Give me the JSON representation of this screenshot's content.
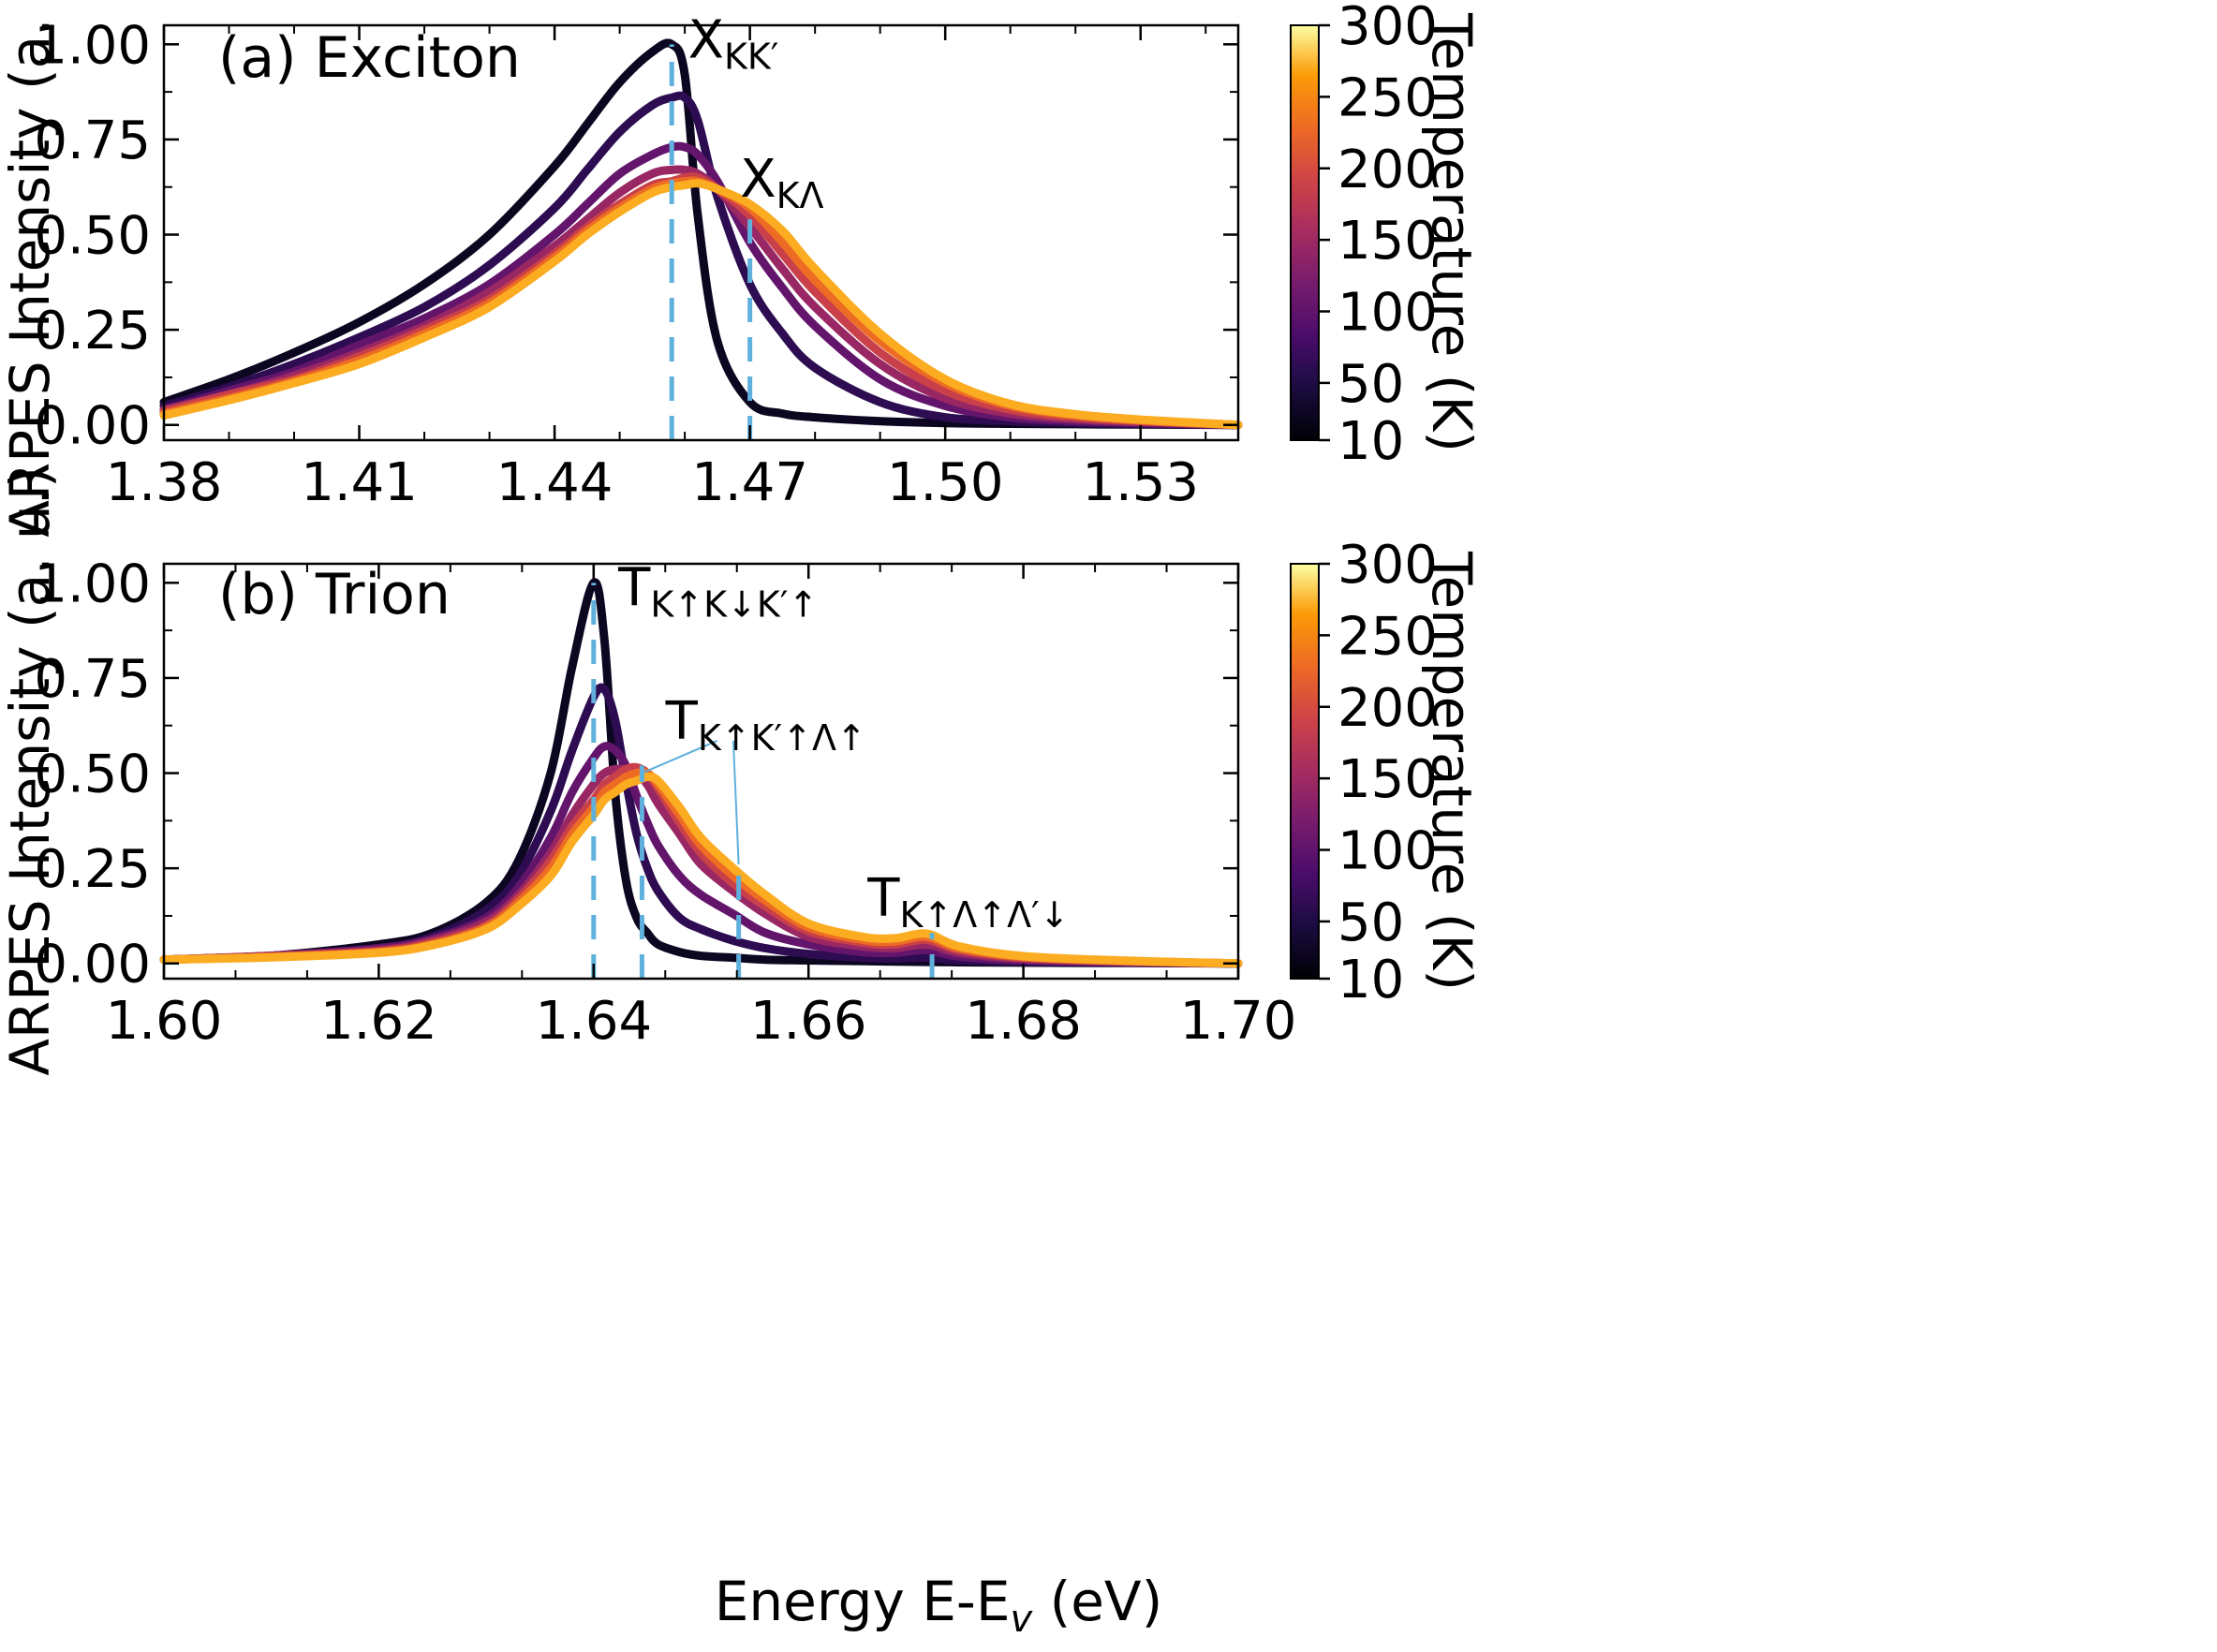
{
  "figure": {
    "xlabel_main": "Energy E-E",
    "xlabel_sub": "v",
    "xlabel_tail": " (eV)"
  },
  "chart_data": [
    {
      "type": "line",
      "panel_title": "(a) Exciton",
      "xlabel": "",
      "ylabel": "ARPES Intensity (a. u.)",
      "xlim": [
        1.38,
        1.545
      ],
      "ylim": [
        -0.04,
        1.05
      ],
      "xticks": [
        "1.38",
        "1.41",
        "1.44",
        "1.47",
        "1.50",
        "1.53"
      ],
      "xtick_values": [
        1.38,
        1.41,
        1.44,
        1.47,
        1.5,
        1.53
      ],
      "yticks": [
        "0.00",
        "0.25",
        "0.50",
        "0.75",
        "1.00"
      ],
      "ytick_values": [
        0,
        0.25,
        0.5,
        0.75,
        1.0
      ],
      "x": [
        1.38,
        1.39,
        1.4,
        1.41,
        1.42,
        1.43,
        1.44,
        1.445,
        1.45,
        1.455,
        1.458,
        1.46,
        1.462,
        1.465,
        1.47,
        1.475,
        1.48,
        1.49,
        1.5,
        1.51,
        1.52,
        1.53,
        1.545
      ],
      "series": [
        {
          "temperature": 10,
          "values": [
            0.06,
            0.12,
            0.19,
            0.27,
            0.37,
            0.5,
            0.68,
            0.79,
            0.9,
            0.98,
            1.0,
            0.92,
            0.55,
            0.22,
            0.06,
            0.03,
            0.02,
            0.01,
            0.005,
            0.003,
            0.002,
            0.001,
            0.0
          ]
        },
        {
          "temperature": 50,
          "values": [
            0.05,
            0.1,
            0.16,
            0.23,
            0.31,
            0.42,
            0.57,
            0.67,
            0.77,
            0.84,
            0.86,
            0.86,
            0.8,
            0.6,
            0.37,
            0.24,
            0.15,
            0.06,
            0.02,
            0.01,
            0.005,
            0.003,
            0.0
          ]
        },
        {
          "temperature": 100,
          "values": [
            0.04,
            0.09,
            0.14,
            0.21,
            0.28,
            0.37,
            0.5,
            0.58,
            0.66,
            0.71,
            0.73,
            0.73,
            0.71,
            0.64,
            0.48,
            0.36,
            0.26,
            0.12,
            0.05,
            0.02,
            0.01,
            0.005,
            0.0
          ]
        },
        {
          "temperature": 150,
          "values": [
            0.04,
            0.08,
            0.13,
            0.19,
            0.26,
            0.35,
            0.47,
            0.54,
            0.61,
            0.66,
            0.67,
            0.67,
            0.66,
            0.62,
            0.52,
            0.41,
            0.31,
            0.16,
            0.07,
            0.03,
            0.015,
            0.008,
            0.0
          ]
        },
        {
          "temperature": 200,
          "values": [
            0.035,
            0.08,
            0.12,
            0.18,
            0.25,
            0.33,
            0.45,
            0.52,
            0.58,
            0.63,
            0.64,
            0.65,
            0.65,
            0.62,
            0.55,
            0.45,
            0.35,
            0.19,
            0.09,
            0.04,
            0.02,
            0.01,
            0.0
          ]
        },
        {
          "temperature": 250,
          "values": [
            0.03,
            0.07,
            0.115,
            0.17,
            0.24,
            0.32,
            0.44,
            0.51,
            0.57,
            0.62,
            0.635,
            0.64,
            0.64,
            0.62,
            0.57,
            0.48,
            0.38,
            0.22,
            0.11,
            0.05,
            0.025,
            0.012,
            0.0
          ]
        },
        {
          "temperature": 300,
          "values": [
            0.025,
            0.065,
            0.11,
            0.16,
            0.23,
            0.31,
            0.43,
            0.5,
            0.56,
            0.61,
            0.625,
            0.63,
            0.635,
            0.62,
            0.58,
            0.51,
            0.41,
            0.24,
            0.12,
            0.055,
            0.028,
            0.014,
            0.0
          ]
        }
      ],
      "markers": [
        {
          "x": 1.458,
          "ytop": 1.0
        },
        {
          "x": 1.47,
          "ytop": 0.54
        }
      ],
      "annotations": [
        {
          "base": "X",
          "sub": "KK′",
          "x": 1.4605,
          "y": 0.965
        },
        {
          "base": "X",
          "sub": "KΛ",
          "x": 1.4685,
          "y": 0.6
        }
      ],
      "colorbar": {
        "label": "Temperature (K)",
        "ticks": [
          "10",
          "50",
          "100",
          "150",
          "200",
          "250",
          "300"
        ],
        "tick_values": [
          10,
          50,
          100,
          150,
          200,
          250,
          300
        ],
        "range": [
          10,
          300
        ],
        "colormap": "inferno"
      }
    },
    {
      "type": "line",
      "panel_title": "(b) Trion",
      "xlabel": "Energy E-Ev (eV)",
      "ylabel": "ARPES Intensity (a. u.)",
      "xlim": [
        1.6,
        1.7
      ],
      "ylim": [
        -0.04,
        1.05
      ],
      "xticks": [
        "1.60",
        "1.62",
        "1.64",
        "1.66",
        "1.68",
        "1.70"
      ],
      "xtick_values": [
        1.6,
        1.62,
        1.64,
        1.66,
        1.68,
        1.7
      ],
      "yticks": [
        "0.00",
        "0.25",
        "0.50",
        "0.75",
        "1.00"
      ],
      "ytick_values": [
        0,
        0.25,
        0.5,
        0.75,
        1.0
      ],
      "x": [
        1.6,
        1.61,
        1.62,
        1.625,
        1.63,
        1.633,
        1.636,
        1.638,
        1.64,
        1.641,
        1.642,
        1.643,
        1.644,
        1.645,
        1.646,
        1.648,
        1.65,
        1.653,
        1.656,
        1.66,
        1.665,
        1.668,
        1.671,
        1.674,
        1.68,
        1.69,
        1.7
      ],
      "series": [
        {
          "temperature": 10,
          "values": [
            0.01,
            0.02,
            0.05,
            0.08,
            0.16,
            0.27,
            0.5,
            0.78,
            1.0,
            0.85,
            0.45,
            0.22,
            0.12,
            0.08,
            0.05,
            0.03,
            0.02,
            0.015,
            0.01,
            0.008,
            0.006,
            0.005,
            0.004,
            0.003,
            0.002,
            0.001,
            0.0
          ]
        },
        {
          "temperature": 50,
          "values": [
            0.01,
            0.02,
            0.04,
            0.07,
            0.14,
            0.23,
            0.4,
            0.56,
            0.7,
            0.72,
            0.64,
            0.48,
            0.34,
            0.25,
            0.19,
            0.12,
            0.09,
            0.06,
            0.04,
            0.025,
            0.015,
            0.013,
            0.015,
            0.008,
            0.004,
            0.002,
            0.0
          ]
        },
        {
          "temperature": 100,
          "values": [
            0.01,
            0.02,
            0.04,
            0.065,
            0.12,
            0.2,
            0.33,
            0.45,
            0.54,
            0.57,
            0.56,
            0.52,
            0.44,
            0.37,
            0.31,
            0.23,
            0.18,
            0.13,
            0.08,
            0.05,
            0.03,
            0.028,
            0.035,
            0.018,
            0.008,
            0.003,
            0.0
          ]
        },
        {
          "temperature": 150,
          "values": [
            0.01,
            0.02,
            0.035,
            0.06,
            0.11,
            0.18,
            0.29,
            0.39,
            0.47,
            0.5,
            0.51,
            0.51,
            0.5,
            0.47,
            0.42,
            0.34,
            0.26,
            0.19,
            0.13,
            0.07,
            0.045,
            0.04,
            0.05,
            0.028,
            0.012,
            0.004,
            0.0
          ]
        },
        {
          "temperature": 200,
          "values": [
            0.01,
            0.018,
            0.032,
            0.055,
            0.1,
            0.17,
            0.27,
            0.36,
            0.43,
            0.47,
            0.49,
            0.51,
            0.515,
            0.5,
            0.46,
            0.37,
            0.29,
            0.21,
            0.15,
            0.085,
            0.055,
            0.05,
            0.062,
            0.035,
            0.015,
            0.005,
            0.0
          ]
        },
        {
          "temperature": 250,
          "values": [
            0.01,
            0.017,
            0.03,
            0.05,
            0.095,
            0.16,
            0.25,
            0.34,
            0.41,
            0.45,
            0.47,
            0.49,
            0.5,
            0.5,
            0.47,
            0.39,
            0.31,
            0.23,
            0.165,
            0.095,
            0.062,
            0.058,
            0.07,
            0.04,
            0.017,
            0.006,
            0.0
          ]
        },
        {
          "temperature": 300,
          "values": [
            0.01,
            0.016,
            0.028,
            0.048,
            0.09,
            0.15,
            0.23,
            0.32,
            0.39,
            0.43,
            0.45,
            0.47,
            0.48,
            0.49,
            0.48,
            0.41,
            0.33,
            0.25,
            0.18,
            0.105,
            0.07,
            0.066,
            0.078,
            0.045,
            0.019,
            0.007,
            0.0
          ]
        }
      ],
      "markers": [
        {
          "x": 1.64,
          "ytop": 1.0
        },
        {
          "x": 1.6445,
          "ytop": 0.52
        },
        {
          "x": 1.6535,
          "ytop": 0.27
        },
        {
          "x": 1.6715,
          "ytop": 0.08
        }
      ],
      "leader_lines": [
        {
          "x1": 1.6515,
          "y1": 0.585,
          "x2": 1.6445,
          "y2": 0.5
        },
        {
          "x1": 1.653,
          "y1": 0.585,
          "x2": 1.6535,
          "y2": 0.26
        }
      ],
      "annotations": [
        {
          "base": "T",
          "sub": "K↑K↓K′↑",
          "x": 1.6423,
          "y": 0.94
        },
        {
          "base": "T",
          "sub": "K↑K′↑Λ↑",
          "x": 1.6467,
          "y": 0.59
        },
        {
          "base": "T",
          "sub": "K↑Λ↑Λ′↓",
          "x": 1.6655,
          "y": 0.125
        }
      ],
      "colorbar": {
        "label": "Temperature (K)",
        "ticks": [
          "10",
          "50",
          "100",
          "150",
          "200",
          "250",
          "300"
        ],
        "tick_values": [
          10,
          50,
          100,
          150,
          200,
          250,
          300
        ],
        "range": [
          10,
          300
        ],
        "colormap": "inferno"
      }
    }
  ]
}
